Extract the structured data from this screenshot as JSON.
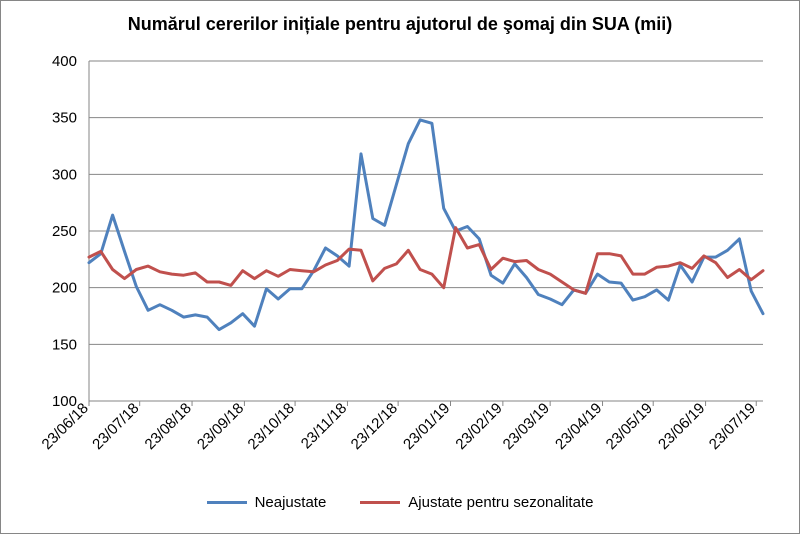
{
  "chart_data": {
    "type": "line",
    "title": "Numărul cererilor inițiale pentru ajutorul de şomaj din SUA (mii)",
    "xlabel": "",
    "ylabel": "",
    "ylim": [
      100,
      400
    ],
    "yticks": [
      100,
      150,
      200,
      250,
      300,
      350,
      400
    ],
    "grid": "horizontal",
    "legend_position": "bottom",
    "x": [
      "23/06/18",
      "30/06/18",
      "07/07/18",
      "14/07/18",
      "21/07/18",
      "28/07/18",
      "04/08/18",
      "11/08/18",
      "18/08/18",
      "25/08/18",
      "01/09/18",
      "08/09/18",
      "15/09/18",
      "22/09/18",
      "29/09/18",
      "06/10/18",
      "13/10/18",
      "20/10/18",
      "27/10/18",
      "03/11/18",
      "10/11/18",
      "17/11/18",
      "24/11/18",
      "01/12/18",
      "08/12/18",
      "15/12/18",
      "22/12/18",
      "29/12/18",
      "05/01/19",
      "12/01/19",
      "19/01/19",
      "26/01/19",
      "02/02/19",
      "09/02/19",
      "16/02/19",
      "23/02/19",
      "02/03/19",
      "09/03/19",
      "16/03/19",
      "23/03/19",
      "30/03/19",
      "06/04/19",
      "13/04/19",
      "20/04/19",
      "27/04/19",
      "04/05/19",
      "11/05/19",
      "18/05/19",
      "25/05/19",
      "01/06/19",
      "08/06/19",
      "15/06/19",
      "22/06/19",
      "29/06/19",
      "06/07/19",
      "13/07/19",
      "20/07/19",
      "27/07/19"
    ],
    "xtick_labels": [
      "23/06/18",
      "23/07/18",
      "23/08/18",
      "23/09/18",
      "23/10/18",
      "23/11/18",
      "23/12/18",
      "23/01/19",
      "23/02/19",
      "23/03/19",
      "23/04/19",
      "23/05/19",
      "23/06/19",
      "23/07/19"
    ],
    "series": [
      {
        "name": "Neajustate",
        "color": "#4f81bd",
        "values": [
          222,
          230,
          264,
          232,
          201,
          180,
          185,
          180,
          174,
          176,
          174,
          163,
          169,
          177,
          166,
          199,
          190,
          199,
          199,
          215,
          235,
          228,
          219,
          318,
          261,
          255,
          291,
          327,
          348,
          345,
          270,
          250,
          254,
          243,
          211,
          204,
          221,
          209,
          194,
          190,
          185,
          198,
          195,
          212,
          205,
          204,
          189,
          192,
          198,
          189,
          220,
          205,
          227,
          227,
          233,
          243,
          197,
          177
        ]
      },
      {
        "name": "Ajustate pentru sezonalitate",
        "color": "#c0504d",
        "values": [
          227,
          232,
          216,
          208,
          216,
          219,
          214,
          212,
          211,
          213,
          205,
          205,
          202,
          215,
          208,
          215,
          210,
          216,
          215,
          214,
          220,
          224,
          234,
          233,
          206,
          217,
          221,
          233,
          216,
          212,
          200,
          253,
          235,
          238,
          216,
          226,
          223,
          224,
          216,
          212,
          205,
          198,
          195,
          230,
          230,
          228,
          212,
          212,
          218,
          219,
          222,
          217,
          228,
          222,
          209,
          216,
          207,
          215
        ]
      }
    ]
  }
}
